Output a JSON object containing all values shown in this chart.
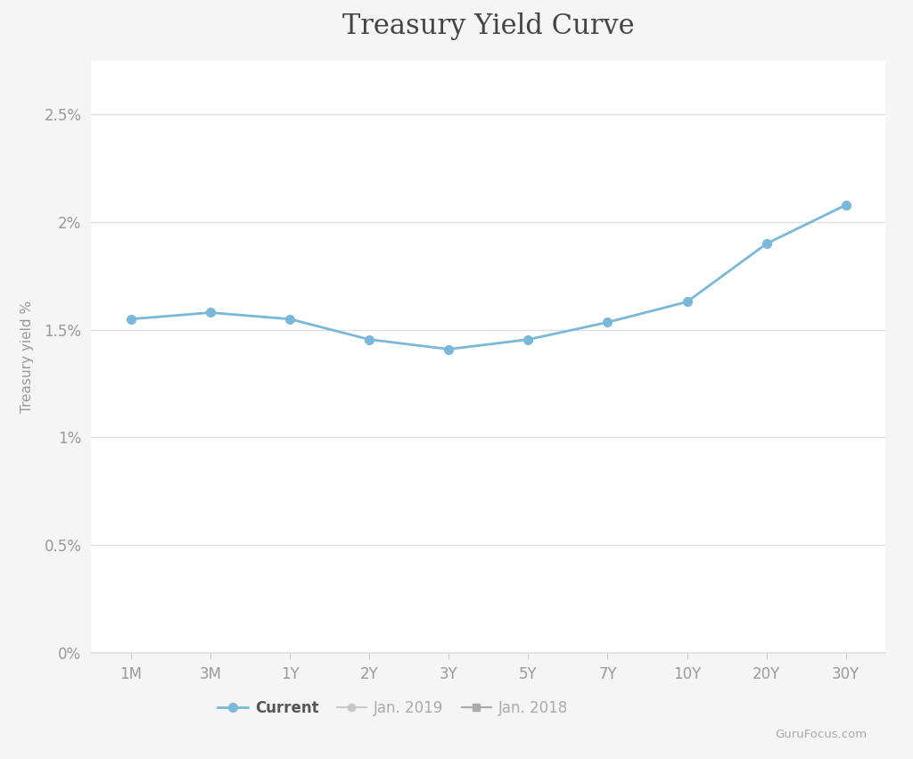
{
  "title": "Treasury Yield Curve",
  "ylabel": "Treasury yield %",
  "background_color": "#f5f5f5",
  "plot_bg_color": "#ffffff",
  "x_labels": [
    "1M",
    "3M",
    "1Y",
    "2Y",
    "3Y",
    "5Y",
    "7Y",
    "10Y",
    "20Y",
    "30Y"
  ],
  "current_values": [
    0.0155,
    0.0158,
    0.0155,
    0.01455,
    0.0141,
    0.01455,
    0.01535,
    0.0163,
    0.019,
    0.0208
  ],
  "current_color": "#7ab8d9",
  "jan2019_color": "#c8c8c8",
  "jan2018_color": "#aaaaaa",
  "ytick_vals": [
    0.0,
    0.005,
    0.01,
    0.015,
    0.02,
    0.025
  ],
  "ytick_labels": [
    "0%",
    "0.5%",
    "1%",
    "1.5%",
    "2%",
    "2.5%"
  ],
  "ylim": [
    0.0,
    0.0275
  ],
  "grid_color": "#e0e0e0",
  "title_fontsize": 22,
  "axis_label_fontsize": 11,
  "tick_fontsize": 12,
  "legend_entries": [
    "Current",
    "Jan. 2019",
    "Jan. 2018"
  ],
  "watermark": "GuruFocus.com"
}
